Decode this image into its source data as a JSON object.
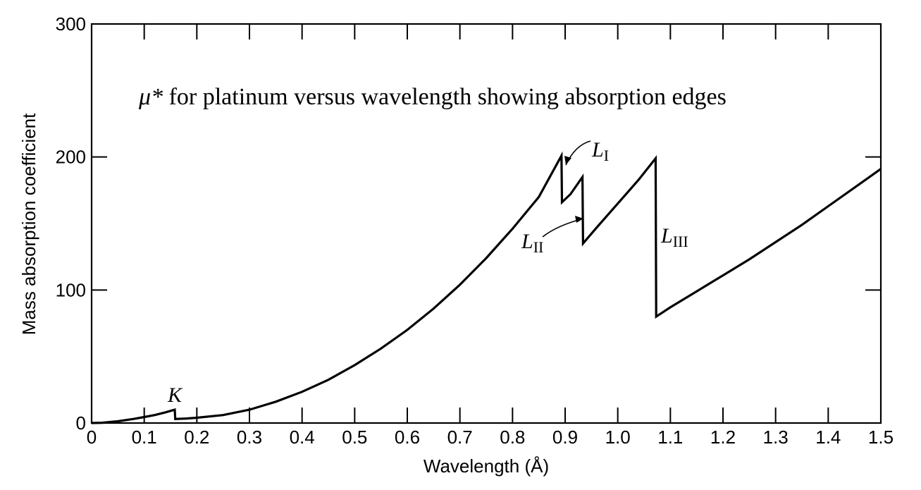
{
  "chart_data": {
    "type": "line",
    "title": "μ* for platinum versus wavelength showing absorption edges",
    "title_symbol": "μ*",
    "title_text": " for platinum versus wavelength showing absorption edges",
    "xlabel": "Wavelength (Å)",
    "ylabel": "Mass absorption coefficient",
    "xlim": [
      0,
      1.5
    ],
    "ylim": [
      0,
      300
    ],
    "x_ticks": [
      0,
      0.1,
      0.2,
      0.3,
      0.4,
      0.5,
      0.6,
      0.7,
      0.8,
      0.9,
      1.0,
      1.1,
      1.2,
      1.3,
      1.4,
      1.5
    ],
    "x_tick_labels": [
      "0",
      "0.1",
      "0.2",
      "0.3",
      "0.4",
      "0.5",
      "0.6",
      "0.7",
      "0.8",
      "0.9",
      "1.0",
      "1.1",
      "1.2",
      "1.3",
      "1.4",
      "1.5"
    ],
    "y_ticks": [
      0,
      100,
      200,
      300
    ],
    "y_tick_labels": [
      "0",
      "100",
      "200",
      "300"
    ],
    "grid": false,
    "series": [
      {
        "x": [
          0,
          0.02,
          0.05,
          0.08,
          0.1,
          0.12,
          0.14,
          0.158,
          0.159,
          0.18,
          0.2,
          0.25,
          0.3,
          0.35,
          0.4,
          0.45,
          0.5,
          0.55,
          0.6,
          0.65,
          0.7,
          0.75,
          0.8,
          0.85,
          0.893,
          0.894,
          0.91,
          0.933,
          0.934,
          0.96,
          1.0,
          1.04,
          1.072,
          1.073,
          1.1,
          1.15,
          1.2,
          1.25,
          1.3,
          1.35,
          1.4,
          1.45,
          1.5
        ],
        "y": [
          0,
          0.2,
          1.3,
          3.1,
          4.5,
          6.0,
          8.0,
          10.0,
          3.0,
          3.4,
          4.0,
          6.0,
          10.0,
          16.0,
          23.5,
          32.5,
          43.5,
          56.0,
          70.0,
          86.0,
          104.0,
          124.0,
          146.0,
          170.0,
          201.0,
          166.0,
          172.0,
          185.0,
          135.0,
          147.0,
          165.0,
          183.0,
          199.0,
          80.0,
          87.0,
          99.0,
          111.0,
          123.0,
          136.0,
          149.0,
          163.0,
          177.0,
          191.0
        ]
      }
    ],
    "annotations": [
      {
        "letter": "K",
        "sub": ""
      },
      {
        "letter": "L",
        "sub": "I"
      },
      {
        "letter": "L",
        "sub": "II"
      },
      {
        "letter": "L",
        "sub": "III"
      }
    ]
  }
}
